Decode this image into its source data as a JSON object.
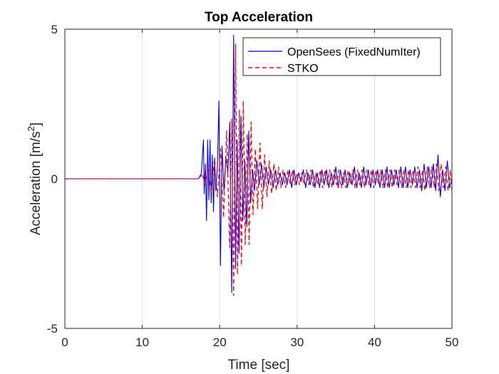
{
  "chart_data": {
    "type": "line",
    "title": "Top Acceleration",
    "xlabel": "Time [sec]",
    "ylabel_main": "Acceleration [m/s",
    "ylabel_sup": "2",
    "ylabel_close": "]",
    "xlim": [
      0,
      50
    ],
    "ylim": [
      -5,
      5
    ],
    "xticks": [
      0,
      10,
      20,
      30,
      40,
      50
    ],
    "xtick_labels": [
      "0",
      "10",
      "20",
      "30",
      "40",
      "50"
    ],
    "yticks": [
      -5,
      0,
      5
    ],
    "ytick_labels": [
      "-5",
      "0",
      "5"
    ],
    "grid": "x-only",
    "legend_position": "top-right",
    "series": [
      {
        "name": "OpenSees (FixedNumIter)",
        "color": "#0000ff",
        "style": "solid",
        "x": [
          0,
          5,
          10,
          15,
          17.2,
          17.6,
          17.9,
          18.0,
          18.15,
          18.3,
          18.45,
          18.6,
          18.75,
          18.9,
          19.05,
          19.2,
          19.35,
          19.5,
          19.7,
          19.9,
          20.1,
          20.3,
          20.55,
          20.8,
          21.05,
          21.3,
          21.55,
          21.8,
          22.05,
          22.25,
          22.5,
          22.75,
          23.0,
          23.25,
          23.5,
          23.75,
          24.0,
          24.25,
          24.5,
          24.8,
          25.1,
          25.4,
          25.7,
          26.0,
          26.3,
          26.6,
          26.9,
          27.2,
          27.5,
          27.8,
          28.1,
          28.4,
          28.7,
          29.0,
          29.3,
          29.6,
          29.9,
          30.2,
          30.5,
          30.8,
          31.1,
          31.4,
          31.7,
          32.0,
          32.3,
          32.6,
          32.9,
          33.2,
          33.5,
          33.8,
          34.1,
          34.4,
          34.7,
          35.0,
          35.3,
          35.6,
          35.9,
          36.2,
          36.5,
          36.8,
          37.1,
          37.4,
          37.7,
          38.0,
          38.3,
          38.6,
          38.9,
          39.2,
          39.5,
          39.8,
          40.1,
          40.4,
          40.7,
          41.0,
          41.3,
          41.6,
          41.9,
          42.2,
          42.5,
          42.8,
          43.1,
          43.4,
          43.7,
          44.0,
          44.3,
          44.6,
          44.9,
          45.2,
          45.5,
          45.8,
          46.1,
          46.4,
          46.7,
          47.0,
          47.3,
          47.6,
          47.9,
          48.2,
          48.5,
          48.8,
          49.1,
          49.4,
          49.7,
          50.0
        ],
        "y": [
          0,
          0,
          0,
          0,
          0.0,
          0.1,
          1.3,
          -0.5,
          0.5,
          -1.4,
          1.3,
          -0.7,
          1.3,
          -0.8,
          0.8,
          -1.1,
          0.7,
          -0.4,
          0.4,
          2.6,
          -2.9,
          1.1,
          -0.4,
          0.7,
          0.2,
          1.9,
          -3.8,
          4.8,
          -3.0,
          1.3,
          -2.5,
          2.1,
          -1.4,
          0.6,
          -1.6,
          1.6,
          -0.8,
          0.3,
          -0.4,
          0.6,
          -0.2,
          0.5,
          -0.3,
          0.4,
          -0.2,
          0.3,
          -0.3,
          0.3,
          -0.2,
          0.2,
          -0.2,
          0.2,
          -0.2,
          0.3,
          -0.3,
          0.3,
          -0.2,
          0.2,
          -0.1,
          0.3,
          -0.3,
          0.2,
          -0.2,
          0.3,
          -0.3,
          0.2,
          -0.3,
          0.3,
          -0.2,
          0.3,
          -0.3,
          0.2,
          -0.2,
          0.4,
          -0.3,
          0.3,
          -0.2,
          0.3,
          -0.3,
          0.2,
          -0.2,
          0.4,
          -0.3,
          0.2,
          -0.3,
          0.4,
          -0.2,
          0.3,
          -0.3,
          0.3,
          -0.2,
          0.3,
          -0.3,
          0.3,
          -0.3,
          0.4,
          -0.3,
          0.3,
          -0.2,
          0.3,
          -0.3,
          0.4,
          -0.3,
          0.4,
          -0.3,
          0.3,
          -0.2,
          0.4,
          -0.3,
          0.3,
          -0.4,
          0.5,
          -0.3,
          0.4,
          -0.3,
          0.5,
          -0.4,
          0.8,
          -0.6,
          0.3,
          -0.4,
          0.6,
          -0.3,
          0.0
        ]
      },
      {
        "name": "STKO",
        "color": "#ff0000",
        "style": "dashed",
        "x": [
          0,
          5,
          10,
          15,
          17.2,
          17.7,
          18.1,
          18.5,
          18.9,
          19.3,
          19.7,
          20.1,
          20.5,
          20.9,
          21.3,
          21.55,
          21.8,
          22.05,
          22.3,
          22.55,
          22.8,
          23.05,
          23.3,
          23.55,
          23.8,
          24.05,
          24.3,
          24.6,
          24.9,
          25.2,
          25.5,
          25.8,
          26.1,
          26.4,
          26.7,
          27.0,
          27.3,
          27.6,
          27.9,
          28.2,
          28.5,
          28.8,
          29.1,
          29.4,
          29.7,
          30.0,
          30.3,
          30.6,
          30.9,
          31.2,
          31.5,
          31.8,
          32.1,
          32.4,
          32.7,
          33.0,
          33.3,
          33.6,
          33.9,
          34.2,
          34.5,
          34.8,
          35.1,
          35.4,
          35.7,
          36.0,
          36.3,
          36.6,
          36.9,
          37.2,
          37.5,
          37.8,
          38.1,
          38.4,
          38.7,
          39.0,
          39.3,
          39.6,
          39.9,
          40.2,
          40.5,
          40.8,
          41.1,
          41.4,
          41.7,
          42.0,
          42.3,
          42.6,
          42.9,
          43.2,
          43.5,
          43.8,
          44.1,
          44.4,
          44.7,
          45.0,
          45.3,
          45.6,
          45.9,
          46.2,
          46.5,
          46.8,
          47.1,
          47.4,
          47.7,
          48.0,
          48.3,
          48.6,
          48.9,
          49.2,
          49.5,
          49.8,
          50.0
        ],
        "y": [
          0,
          0,
          0,
          0,
          0.0,
          0.2,
          -0.2,
          0.4,
          -0.5,
          0.6,
          -0.6,
          1.0,
          -1.3,
          1.6,
          -2.3,
          2.0,
          -3.9,
          4.5,
          -3.2,
          2.3,
          -2.9,
          2.6,
          -2.2,
          1.5,
          -2.2,
          1.9,
          -1.2,
          1.0,
          -1.0,
          1.2,
          -1.0,
          0.8,
          -0.6,
          0.6,
          -0.5,
          0.5,
          -0.4,
          0.4,
          -0.3,
          0.3,
          -0.3,
          0.3,
          -0.2,
          0.3,
          -0.2,
          0.2,
          -0.2,
          0.2,
          -0.2,
          0.3,
          -0.2,
          0.3,
          -0.3,
          0.2,
          -0.2,
          0.3,
          -0.3,
          0.3,
          -0.2,
          0.3,
          -0.3,
          0.3,
          -0.2,
          0.3,
          -0.3,
          0.2,
          -0.3,
          0.3,
          -0.2,
          0.3,
          -0.3,
          0.3,
          -0.2,
          0.3,
          -0.3,
          0.3,
          -0.2,
          0.3,
          -0.3,
          0.3,
          -0.2,
          0.3,
          -0.3,
          0.3,
          -0.3,
          0.3,
          -0.3,
          0.3,
          -0.2,
          0.3,
          -0.3,
          0.3,
          -0.3,
          0.3,
          -0.3,
          0.3,
          -0.3,
          0.4,
          -0.3,
          0.3,
          -0.4,
          0.4,
          -0.3,
          0.4,
          -0.3,
          0.5,
          -0.4,
          0.5,
          -0.3,
          0.4,
          -0.4,
          0.3,
          -0.4
        ]
      }
    ]
  },
  "colors": {
    "axis": "#262626",
    "grid": "#dfdfdf",
    "background": "#ffffff"
  }
}
